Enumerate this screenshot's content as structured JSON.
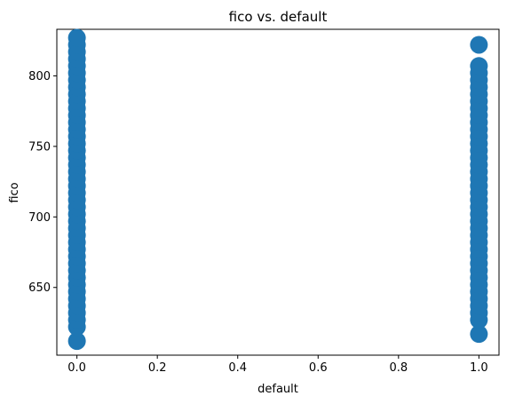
{
  "chart_data": {
    "type": "scatter",
    "title": "fico vs. default",
    "xlabel": "default",
    "ylabel": "fico",
    "xlim": [
      -0.05,
      1.05
    ],
    "ylim": [
      602,
      833
    ],
    "xticks": [
      0.0,
      0.2,
      0.4,
      0.6,
      0.8,
      1.0
    ],
    "xtick_labels": [
      "0.0",
      "0.2",
      "0.4",
      "0.6",
      "0.8",
      "1.0"
    ],
    "yticks": [
      650,
      700,
      750,
      800
    ],
    "ytick_labels": [
      "650",
      "700",
      "750",
      "800"
    ],
    "grid": false,
    "marker_color": "#1f77b4",
    "series": [
      {
        "points": [
          {
            "x": 0,
            "y": 612
          },
          {
            "x": 0,
            "y": 622
          },
          {
            "x": 0,
            "y": 627
          },
          {
            "x": 0,
            "y": 632
          },
          {
            "x": 0,
            "y": 637
          },
          {
            "x": 0,
            "y": 642
          },
          {
            "x": 0,
            "y": 647
          },
          {
            "x": 0,
            "y": 652
          },
          {
            "x": 0,
            "y": 657
          },
          {
            "x": 0,
            "y": 662
          },
          {
            "x": 0,
            "y": 667
          },
          {
            "x": 0,
            "y": 672
          },
          {
            "x": 0,
            "y": 677
          },
          {
            "x": 0,
            "y": 682
          },
          {
            "x": 0,
            "y": 687
          },
          {
            "x": 0,
            "y": 692
          },
          {
            "x": 0,
            "y": 697
          },
          {
            "x": 0,
            "y": 702
          },
          {
            "x": 0,
            "y": 707
          },
          {
            "x": 0,
            "y": 712
          },
          {
            "x": 0,
            "y": 717
          },
          {
            "x": 0,
            "y": 722
          },
          {
            "x": 0,
            "y": 727
          },
          {
            "x": 0,
            "y": 732
          },
          {
            "x": 0,
            "y": 737
          },
          {
            "x": 0,
            "y": 742
          },
          {
            "x": 0,
            "y": 747
          },
          {
            "x": 0,
            "y": 752
          },
          {
            "x": 0,
            "y": 757
          },
          {
            "x": 0,
            "y": 762
          },
          {
            "x": 0,
            "y": 767
          },
          {
            "x": 0,
            "y": 772
          },
          {
            "x": 0,
            "y": 777
          },
          {
            "x": 0,
            "y": 782
          },
          {
            "x": 0,
            "y": 787
          },
          {
            "x": 0,
            "y": 792
          },
          {
            "x": 0,
            "y": 797
          },
          {
            "x": 0,
            "y": 802
          },
          {
            "x": 0,
            "y": 807
          },
          {
            "x": 0,
            "y": 812
          },
          {
            "x": 0,
            "y": 817
          },
          {
            "x": 0,
            "y": 822
          },
          {
            "x": 0,
            "y": 827
          },
          {
            "x": 1,
            "y": 617
          },
          {
            "x": 1,
            "y": 627
          },
          {
            "x": 1,
            "y": 632
          },
          {
            "x": 1,
            "y": 637
          },
          {
            "x": 1,
            "y": 642
          },
          {
            "x": 1,
            "y": 647
          },
          {
            "x": 1,
            "y": 652
          },
          {
            "x": 1,
            "y": 657
          },
          {
            "x": 1,
            "y": 662
          },
          {
            "x": 1,
            "y": 667
          },
          {
            "x": 1,
            "y": 672
          },
          {
            "x": 1,
            "y": 677
          },
          {
            "x": 1,
            "y": 682
          },
          {
            "x": 1,
            "y": 687
          },
          {
            "x": 1,
            "y": 692
          },
          {
            "x": 1,
            "y": 697
          },
          {
            "x": 1,
            "y": 702
          },
          {
            "x": 1,
            "y": 707
          },
          {
            "x": 1,
            "y": 712
          },
          {
            "x": 1,
            "y": 717
          },
          {
            "x": 1,
            "y": 722
          },
          {
            "x": 1,
            "y": 727
          },
          {
            "x": 1,
            "y": 732
          },
          {
            "x": 1,
            "y": 737
          },
          {
            "x": 1,
            "y": 742
          },
          {
            "x": 1,
            "y": 747
          },
          {
            "x": 1,
            "y": 752
          },
          {
            "x": 1,
            "y": 757
          },
          {
            "x": 1,
            "y": 762
          },
          {
            "x": 1,
            "y": 767
          },
          {
            "x": 1,
            "y": 772
          },
          {
            "x": 1,
            "y": 777
          },
          {
            "x": 1,
            "y": 782
          },
          {
            "x": 1,
            "y": 787
          },
          {
            "x": 1,
            "y": 792
          },
          {
            "x": 1,
            "y": 797
          },
          {
            "x": 1,
            "y": 802
          },
          {
            "x": 1,
            "y": 807
          },
          {
            "x": 1,
            "y": 822
          }
        ]
      }
    ]
  }
}
